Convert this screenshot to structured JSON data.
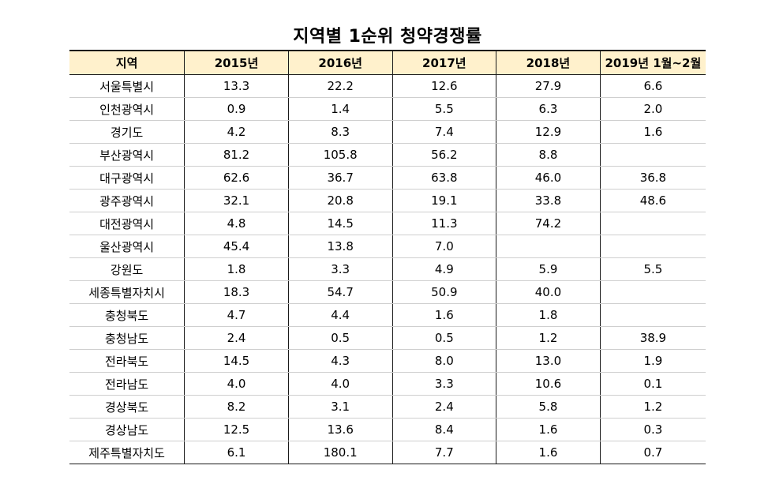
{
  "title": "지역별 1순위 청약경쟁률",
  "table": {
    "headers": [
      "지역",
      "2015년",
      "2016년",
      "2017년",
      "2018년",
      "2019년 1월~2월"
    ],
    "rows": [
      [
        "서울특별시",
        "13.3",
        "22.2",
        "12.6",
        "27.9",
        "6.6"
      ],
      [
        "인천광역시",
        "0.9",
        "1.4",
        "5.5",
        "6.3",
        "2.0"
      ],
      [
        "경기도",
        "4.2",
        "8.3",
        "7.4",
        "12.9",
        "1.6"
      ],
      [
        "부산광역시",
        "81.2",
        "105.8",
        "56.2",
        "8.8",
        ""
      ],
      [
        "대구광역시",
        "62.6",
        "36.7",
        "63.8",
        "46.0",
        "36.8"
      ],
      [
        "광주광역시",
        "32.1",
        "20.8",
        "19.1",
        "33.8",
        "48.6"
      ],
      [
        "대전광역시",
        "4.8",
        "14.5",
        "11.3",
        "74.2",
        ""
      ],
      [
        "울산광역시",
        "45.4",
        "13.8",
        "7.0",
        "",
        ""
      ],
      [
        "강원도",
        "1.8",
        "3.3",
        "4.9",
        "5.9",
        "5.5"
      ],
      [
        "세종특별자치시",
        "18.3",
        "54.7",
        "50.9",
        "40.0",
        ""
      ],
      [
        "충청북도",
        "4.7",
        "4.4",
        "1.6",
        "1.8",
        ""
      ],
      [
        "충청남도",
        "2.4",
        "0.5",
        "0.5",
        "1.2",
        "38.9"
      ],
      [
        "전라북도",
        "14.5",
        "4.3",
        "8.0",
        "13.0",
        "1.9"
      ],
      [
        "전라남도",
        "4.0",
        "4.0",
        "3.3",
        "10.6",
        "0.1"
      ],
      [
        "경상북도",
        "8.2",
        "3.1",
        "2.4",
        "5.8",
        "1.2"
      ],
      [
        "경상남도",
        "12.5",
        "13.6",
        "8.4",
        "1.6",
        "0.3"
      ],
      [
        "제주특별자치도",
        "6.1",
        "180.1",
        "7.7",
        "1.6",
        "0.7"
      ]
    ]
  },
  "colors": {
    "header_background": "#fff1cc"
  }
}
